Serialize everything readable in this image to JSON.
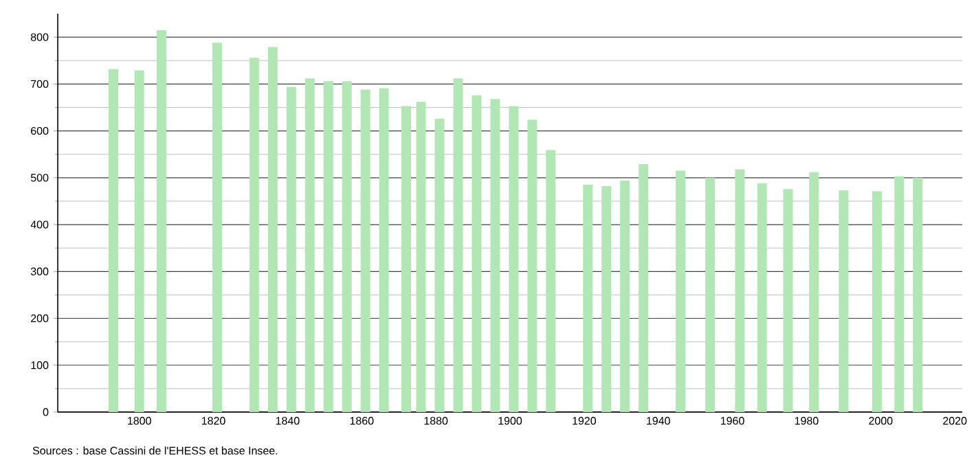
{
  "chart_data": {
    "type": "bar",
    "color": "#b3e6b5",
    "x": [
      1793,
      1800,
      1806,
      1821,
      1831,
      1836,
      1841,
      1846,
      1851,
      1856,
      1861,
      1866,
      1872,
      1876,
      1881,
      1886,
      1891,
      1896,
      1901,
      1906,
      1911,
      1921,
      1926,
      1931,
      1936,
      1946,
      1954,
      1962,
      1968,
      1975,
      1982,
      1990,
      1999,
      2005,
      2010
    ],
    "values": [
      732,
      729,
      815,
      788,
      756,
      779,
      694,
      712,
      706,
      706,
      688,
      691,
      653,
      662,
      626,
      712,
      676,
      668,
      653,
      624,
      559,
      485,
      482,
      494,
      529,
      515,
      500,
      518,
      488,
      476,
      512,
      473,
      471,
      503,
      500
    ],
    "xlim": [
      1778,
      2022
    ],
    "ylim": [
      0,
      850
    ],
    "xticks": [
      1800,
      1820,
      1840,
      1860,
      1880,
      1900,
      1920,
      1940,
      1960,
      1980,
      2000,
      2020
    ],
    "yticks": [
      0,
      100,
      200,
      300,
      400,
      500,
      600,
      700,
      800
    ],
    "grid": "y",
    "annotations": [
      "Sources : base Cassini de l'EHESS et base Insee."
    ]
  }
}
